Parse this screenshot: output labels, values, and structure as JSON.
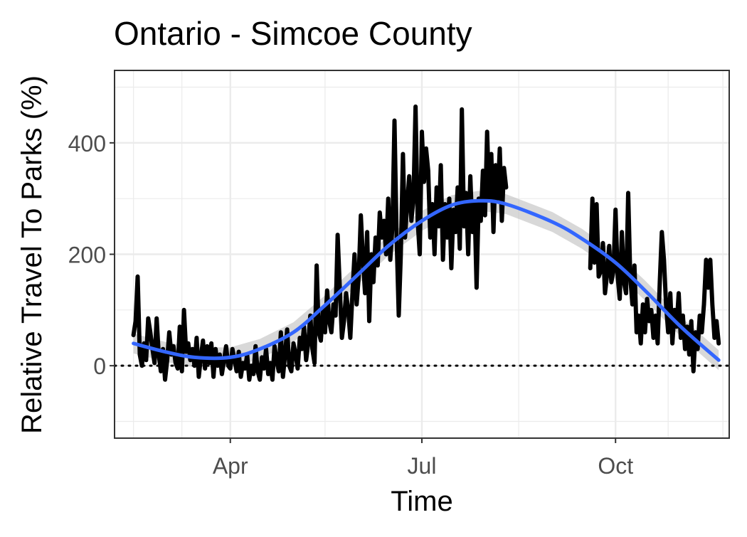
{
  "chart_data": {
    "type": "line",
    "title": "Ontario - Simcoe County",
    "xlabel": "Time",
    "ylabel": "Relative Travel To Parks (%)",
    "x_ticks": [
      {
        "label": "Apr",
        "date": "2020-04-01"
      },
      {
        "label": "Jul",
        "date": "2020-07-01"
      },
      {
        "label": "Oct",
        "date": "2020-10-01"
      }
    ],
    "y_ticks": [
      0,
      200,
      400
    ],
    "xlim": [
      "2020-02-06",
      "2020-11-24"
    ],
    "ylim": [
      -130,
      530
    ],
    "reference_line": {
      "y": 0,
      "style": "dotted"
    },
    "grid": true,
    "colors": {
      "raw": "#000000",
      "smooth": "#3366FF",
      "band": "#BEBEBE",
      "grid": "#EBEBEB",
      "border": "#333333"
    },
    "series": [
      {
        "kind": "raw",
        "points": [
          [
            "2020-02-15",
            55
          ],
          [
            "2020-02-16",
            80
          ],
          [
            "2020-02-17",
            160
          ],
          [
            "2020-02-18",
            20
          ],
          [
            "2020-02-19",
            0
          ],
          [
            "2020-02-20",
            40
          ],
          [
            "2020-02-21",
            10
          ],
          [
            "2020-02-22",
            85
          ],
          [
            "2020-02-23",
            60
          ],
          [
            "2020-02-24",
            30
          ],
          [
            "2020-02-25",
            5
          ],
          [
            "2020-02-26",
            85
          ],
          [
            "2020-02-27",
            20
          ],
          [
            "2020-02-28",
            -10
          ],
          [
            "2020-02-29",
            30
          ],
          [
            "2020-03-01",
            -25
          ],
          [
            "2020-03-02",
            10
          ],
          [
            "2020-03-03",
            60
          ],
          [
            "2020-03-04",
            20
          ],
          [
            "2020-03-05",
            35
          ],
          [
            "2020-03-06",
            5
          ],
          [
            "2020-03-07",
            -5
          ],
          [
            "2020-03-08",
            70
          ],
          [
            "2020-03-09",
            -10
          ],
          [
            "2020-03-10",
            100
          ],
          [
            "2020-03-11",
            25
          ],
          [
            "2020-03-12",
            40
          ],
          [
            "2020-03-13",
            10
          ],
          [
            "2020-03-14",
            30
          ],
          [
            "2020-03-15",
            0
          ],
          [
            "2020-03-16",
            50
          ],
          [
            "2020-03-17",
            -20
          ],
          [
            "2020-03-18",
            15
          ],
          [
            "2020-03-19",
            45
          ],
          [
            "2020-03-20",
            -5
          ],
          [
            "2020-03-21",
            35
          ],
          [
            "2020-03-22",
            5
          ],
          [
            "2020-03-23",
            40
          ],
          [
            "2020-03-24",
            -20
          ],
          [
            "2020-03-25",
            30
          ],
          [
            "2020-03-26",
            0
          ],
          [
            "2020-03-27",
            20
          ],
          [
            "2020-03-28",
            -15
          ],
          [
            "2020-03-29",
            10
          ],
          [
            "2020-03-30",
            35
          ],
          [
            "2020-03-31",
            0
          ],
          [
            "2020-04-01",
            -5
          ],
          [
            "2020-04-02",
            30
          ],
          [
            "2020-04-03",
            10
          ],
          [
            "2020-04-04",
            -10
          ],
          [
            "2020-04-05",
            25
          ],
          [
            "2020-04-06",
            -20
          ],
          [
            "2020-04-07",
            5
          ],
          [
            "2020-04-08",
            -5
          ],
          [
            "2020-04-09",
            20
          ],
          [
            "2020-04-10",
            -25
          ],
          [
            "2020-04-11",
            0
          ],
          [
            "2020-04-12",
            -15
          ],
          [
            "2020-04-13",
            35
          ],
          [
            "2020-04-14",
            -10
          ],
          [
            "2020-04-15",
            -25
          ],
          [
            "2020-04-16",
            15
          ],
          [
            "2020-04-17",
            -5
          ],
          [
            "2020-04-18",
            30
          ],
          [
            "2020-04-19",
            -15
          ],
          [
            "2020-04-20",
            5
          ],
          [
            "2020-04-21",
            -25
          ],
          [
            "2020-04-22",
            35
          ],
          [
            "2020-04-23",
            10
          ],
          [
            "2020-04-24",
            -10
          ],
          [
            "2020-04-25",
            60
          ],
          [
            "2020-04-26",
            -20
          ],
          [
            "2020-04-27",
            20
          ],
          [
            "2020-04-28",
            65
          ],
          [
            "2020-04-29",
            0
          ],
          [
            "2020-04-30",
            -10
          ],
          [
            "2020-05-01",
            40
          ],
          [
            "2020-05-02",
            20
          ],
          [
            "2020-05-03",
            -5
          ],
          [
            "2020-05-04",
            50
          ],
          [
            "2020-05-05",
            30
          ],
          [
            "2020-05-06",
            70
          ],
          [
            "2020-05-07",
            10
          ],
          [
            "2020-05-08",
            40
          ],
          [
            "2020-05-09",
            90
          ],
          [
            "2020-05-10",
            30
          ],
          [
            "2020-05-11",
            5
          ],
          [
            "2020-05-12",
            180
          ],
          [
            "2020-05-13",
            60
          ],
          [
            "2020-05-14",
            45
          ],
          [
            "2020-05-15",
            100
          ],
          [
            "2020-05-16",
            60
          ],
          [
            "2020-05-17",
            135
          ],
          [
            "2020-05-18",
            80
          ],
          [
            "2020-05-19",
            60
          ],
          [
            "2020-05-20",
            110
          ],
          [
            "2020-05-21",
            90
          ],
          [
            "2020-05-22",
            235
          ],
          [
            "2020-05-23",
            140
          ],
          [
            "2020-05-24",
            50
          ],
          [
            "2020-05-25",
            80
          ],
          [
            "2020-05-26",
            130
          ],
          [
            "2020-05-27",
            100
          ],
          [
            "2020-05-28",
            50
          ],
          [
            "2020-05-29",
            130
          ],
          [
            "2020-05-30",
            200
          ],
          [
            "2020-05-31",
            110
          ],
          [
            "2020-06-01",
            160
          ],
          [
            "2020-06-02",
            270
          ],
          [
            "2020-06-03",
            190
          ],
          [
            "2020-06-04",
            130
          ],
          [
            "2020-06-05",
            240
          ],
          [
            "2020-06-06",
            80
          ],
          [
            "2020-06-07",
            200
          ],
          [
            "2020-06-08",
            150
          ],
          [
            "2020-06-09",
            230
          ],
          [
            "2020-06-10",
            180
          ],
          [
            "2020-06-11",
            275
          ],
          [
            "2020-06-12",
            230
          ],
          [
            "2020-06-13",
            260
          ],
          [
            "2020-06-14",
            200
          ],
          [
            "2020-06-15",
            300
          ],
          [
            "2020-06-16",
            190
          ],
          [
            "2020-06-17",
            250
          ],
          [
            "2020-06-18",
            440
          ],
          [
            "2020-06-19",
            230
          ],
          [
            "2020-06-20",
            90
          ],
          [
            "2020-06-21",
            200
          ],
          [
            "2020-06-22",
            380
          ],
          [
            "2020-06-23",
            230
          ],
          [
            "2020-06-24",
            290
          ],
          [
            "2020-06-25",
            340
          ],
          [
            "2020-06-26",
            260
          ],
          [
            "2020-06-27",
            300
          ],
          [
            "2020-06-28",
            465
          ],
          [
            "2020-06-29",
            260
          ],
          [
            "2020-06-30",
            200
          ],
          [
            "2020-07-01",
            420
          ],
          [
            "2020-07-02",
            330
          ],
          [
            "2020-07-03",
            390
          ],
          [
            "2020-07-04",
            350
          ],
          [
            "2020-07-05",
            230
          ],
          [
            "2020-07-06",
            290
          ],
          [
            "2020-07-07",
            200
          ],
          [
            "2020-07-08",
            320
          ],
          [
            "2020-07-09",
            250
          ],
          [
            "2020-07-10",
            360
          ],
          [
            "2020-07-11",
            190
          ],
          [
            "2020-07-12",
            290
          ],
          [
            "2020-07-13",
            230
          ],
          [
            "2020-07-14",
            300
          ],
          [
            "2020-07-15",
            175
          ],
          [
            "2020-07-16",
            280
          ],
          [
            "2020-07-17",
            240
          ],
          [
            "2020-07-18",
            320
          ],
          [
            "2020-07-19",
            210
          ],
          [
            "2020-07-20",
            460
          ],
          [
            "2020-07-21",
            250
          ],
          [
            "2020-07-22",
            310
          ],
          [
            "2020-07-23",
            200
          ],
          [
            "2020-07-24",
            340
          ],
          [
            "2020-07-25",
            240
          ],
          [
            "2020-07-26",
            295
          ],
          [
            "2020-07-27",
            140
          ],
          [
            "2020-07-28",
            300
          ],
          [
            "2020-07-29",
            260
          ],
          [
            "2020-07-30",
            350
          ],
          [
            "2020-07-31",
            270
          ],
          [
            "2020-08-01",
            420
          ],
          [
            "2020-08-02",
            300
          ],
          [
            "2020-08-03",
            380
          ],
          [
            "2020-08-04",
            240
          ],
          [
            "2020-08-05",
            360
          ],
          [
            "2020-08-06",
            300
          ],
          [
            "2020-08-07",
            390
          ],
          [
            "2020-08-08",
            260
          ],
          [
            "2020-08-09",
            355
          ],
          [
            "2020-08-10",
            320
          ]
        ]
      },
      {
        "kind": "raw",
        "points": [
          [
            "2020-09-19",
            175
          ],
          [
            "2020-09-20",
            300
          ],
          [
            "2020-09-21",
            185
          ],
          [
            "2020-09-22",
            290
          ],
          [
            "2020-09-23",
            160
          ],
          [
            "2020-09-24",
            170
          ],
          [
            "2020-09-25",
            220
          ],
          [
            "2020-09-26",
            130
          ],
          [
            "2020-09-27",
            165
          ],
          [
            "2020-09-28",
            215
          ],
          [
            "2020-09-29",
            150
          ],
          [
            "2020-09-30",
            170
          ],
          [
            "2020-10-01",
            280
          ],
          [
            "2020-10-02",
            160
          ],
          [
            "2020-10-03",
            120
          ],
          [
            "2020-10-04",
            240
          ],
          [
            "2020-10-05",
            150
          ],
          [
            "2020-10-06",
            130
          ],
          [
            "2020-10-07",
            310
          ],
          [
            "2020-10-08",
            160
          ],
          [
            "2020-10-09",
            110
          ],
          [
            "2020-10-10",
            180
          ],
          [
            "2020-10-11",
            60
          ],
          [
            "2020-10-12",
            90
          ],
          [
            "2020-10-13",
            40
          ],
          [
            "2020-10-14",
            110
          ],
          [
            "2020-10-15",
            60
          ],
          [
            "2020-10-16",
            120
          ],
          [
            "2020-10-17",
            80
          ],
          [
            "2020-10-18",
            100
          ],
          [
            "2020-10-19",
            50
          ],
          [
            "2020-10-20",
            90
          ],
          [
            "2020-10-21",
            40
          ],
          [
            "2020-10-22",
            150
          ],
          [
            "2020-10-23",
            240
          ],
          [
            "2020-10-24",
            190
          ],
          [
            "2020-10-25",
            110
          ],
          [
            "2020-10-26",
            60
          ],
          [
            "2020-10-27",
            130
          ],
          [
            "2020-10-28",
            40
          ],
          [
            "2020-10-29",
            100
          ],
          [
            "2020-10-30",
            70
          ],
          [
            "2020-10-31",
            130
          ],
          [
            "2020-11-01",
            50
          ],
          [
            "2020-11-02",
            90
          ],
          [
            "2020-11-03",
            30
          ],
          [
            "2020-11-04",
            70
          ],
          [
            "2020-11-05",
            20
          ],
          [
            "2020-11-06",
            80
          ],
          [
            "2020-11-07",
            -10
          ],
          [
            "2020-11-08",
            60
          ],
          [
            "2020-11-09",
            30
          ],
          [
            "2020-11-10",
            90
          ],
          [
            "2020-11-11",
            60
          ],
          [
            "2020-11-12",
            110
          ],
          [
            "2020-11-13",
            190
          ],
          [
            "2020-11-14",
            140
          ],
          [
            "2020-11-15",
            190
          ],
          [
            "2020-11-16",
            110
          ],
          [
            "2020-11-17",
            50
          ],
          [
            "2020-11-18",
            80
          ],
          [
            "2020-11-19",
            40
          ]
        ]
      },
      {
        "kind": "smooth",
        "points": [
          [
            "2020-02-15",
            40
          ],
          [
            "2020-03-01",
            25
          ],
          [
            "2020-03-15",
            15
          ],
          [
            "2020-04-01",
            15
          ],
          [
            "2020-04-15",
            30
          ],
          [
            "2020-05-01",
            60
          ],
          [
            "2020-05-15",
            105
          ],
          [
            "2020-06-01",
            165
          ],
          [
            "2020-06-15",
            215
          ],
          [
            "2020-07-01",
            260
          ],
          [
            "2020-07-15",
            288
          ],
          [
            "2020-07-28",
            296
          ],
          [
            "2020-08-10",
            290
          ],
          [
            "2020-09-01",
            258
          ],
          [
            "2020-09-15",
            228
          ],
          [
            "2020-10-01",
            185
          ],
          [
            "2020-10-15",
            135
          ],
          [
            "2020-11-01",
            70
          ],
          [
            "2020-11-19",
            10
          ]
        ]
      }
    ]
  }
}
